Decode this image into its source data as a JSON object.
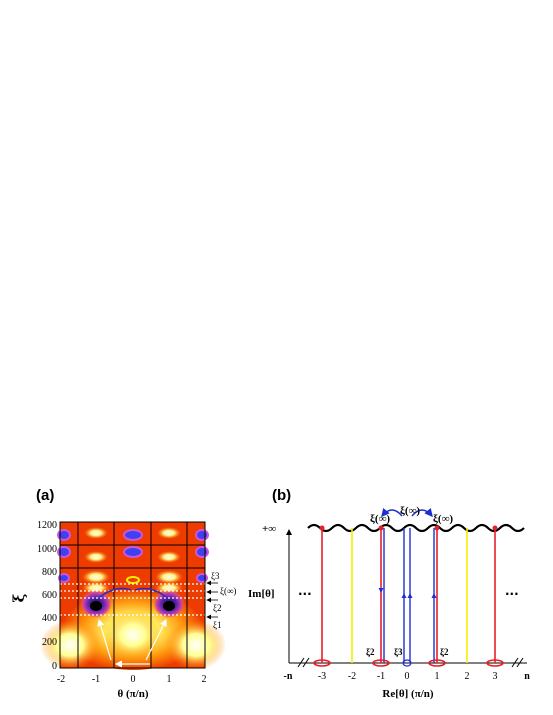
{
  "panel_a": {
    "label": "(a)",
    "ylabel": "ξ",
    "xlabel": "θ (π/n)",
    "y_ticks": [
      "0",
      "200",
      "400",
      "600",
      "800",
      "1000",
      "1200"
    ],
    "x_ticks": [
      "-2",
      "-1",
      "0",
      "1",
      "2"
    ],
    "right_labels": {
      "xi3": "ξ3",
      "xi_inf": "ξ(∞)",
      "xi2": "ξ2",
      "xi1": "ξ1"
    }
  },
  "panel_b": {
    "label": "(b)",
    "ylabel": "Im[θ]",
    "xlabel": "Re[θ]  (π/n)",
    "plus_inf": "+∞",
    "x_ticks": [
      "-3",
      "-2",
      "-1",
      "0",
      "1",
      "2",
      "3"
    ],
    "left_end": "-n",
    "right_end": "n",
    "ellipsis": "...",
    "top_labels": [
      "ξ(∞)",
      "ξ(∞)",
      "ξ(∞)"
    ],
    "bottom_labels": {
      "xi2_left": "ξ2",
      "xi3": "ξ3",
      "xi2_right": "ξ2"
    }
  },
  "colors": {
    "red": "#e8202a",
    "yellow": "#f4ef00",
    "blue": "#1f2fcf",
    "black": "#000000"
  }
}
